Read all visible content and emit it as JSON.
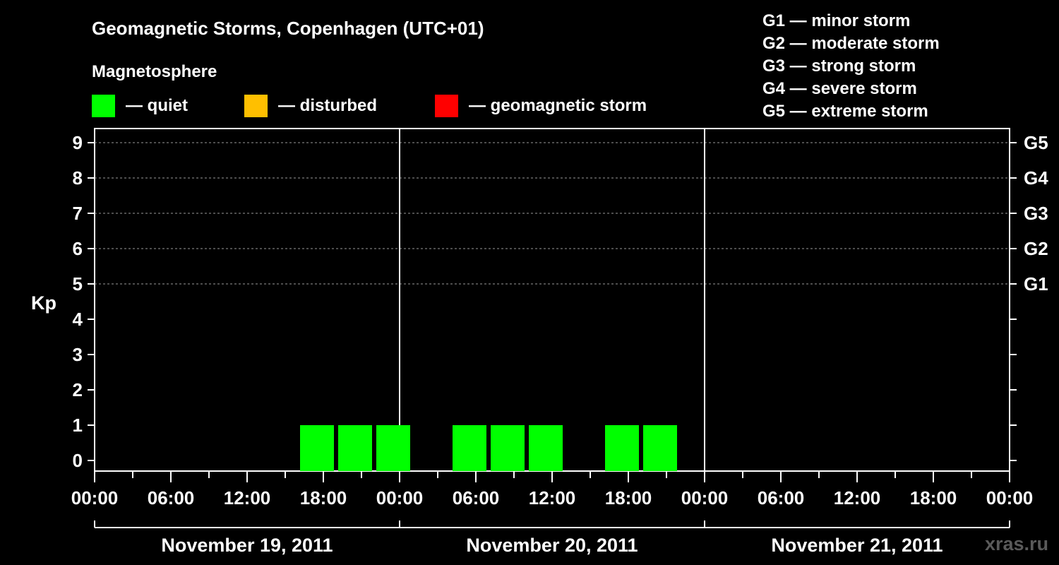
{
  "chart_data": {
    "type": "bar",
    "title": "Geomagnetic Storms, Copenhagen (UTC+01)",
    "subtitle": "Magnetosphere",
    "ylabel": "Kp",
    "ylim": [
      0,
      9
    ],
    "yticks": [
      "0",
      "1",
      "2",
      "3",
      "4",
      "5",
      "6",
      "7",
      "8",
      "9"
    ],
    "storm_levels": [
      {
        "kp": 5,
        "label": "G1"
      },
      {
        "kp": 6,
        "label": "G2"
      },
      {
        "kp": 7,
        "label": "G3"
      },
      {
        "kp": 8,
        "label": "G4"
      },
      {
        "kp": 9,
        "label": "G5"
      }
    ],
    "storm_legend": [
      "G1 — minor storm",
      "G2 — moderate storm",
      "G3 — strong storm",
      "G4 — severe storm",
      "G5 — extreme storm"
    ],
    "status_legend": [
      {
        "label": "— quiet",
        "color": "#00ff00"
      },
      {
        "label": "— disturbed",
        "color": "#ffbf00"
      },
      {
        "label": "— geomagnetic storm",
        "color": "#ff0000"
      }
    ],
    "x_range_hours": [
      0,
      72
    ],
    "xtick_labels": [
      "00:00",
      "06:00",
      "12:00",
      "18:00",
      "00:00",
      "06:00",
      "12:00",
      "18:00",
      "00:00",
      "06:00",
      "12:00",
      "18:00",
      "00:00"
    ],
    "days": [
      "November 19, 2011",
      "November 20, 2011",
      "November 21, 2011"
    ],
    "bar_interval_hours": 3,
    "bars": [
      {
        "start_hour": 16,
        "kp": 1,
        "status": "quiet"
      },
      {
        "start_hour": 19,
        "kp": 1,
        "status": "quiet"
      },
      {
        "start_hour": 22,
        "kp": 1,
        "status": "quiet"
      },
      {
        "start_hour": 28,
        "kp": 1,
        "status": "quiet"
      },
      {
        "start_hour": 31,
        "kp": 1,
        "status": "quiet"
      },
      {
        "start_hour": 34,
        "kp": 1,
        "status": "quiet"
      },
      {
        "start_hour": 40,
        "kp": 1,
        "status": "quiet"
      },
      {
        "start_hour": 43,
        "kp": 1,
        "status": "quiet"
      }
    ],
    "colors": {
      "quiet": "#00ff00",
      "disturbed": "#ffbf00",
      "storm": "#ff0000"
    },
    "grid": true
  },
  "watermark": "xras.ru"
}
